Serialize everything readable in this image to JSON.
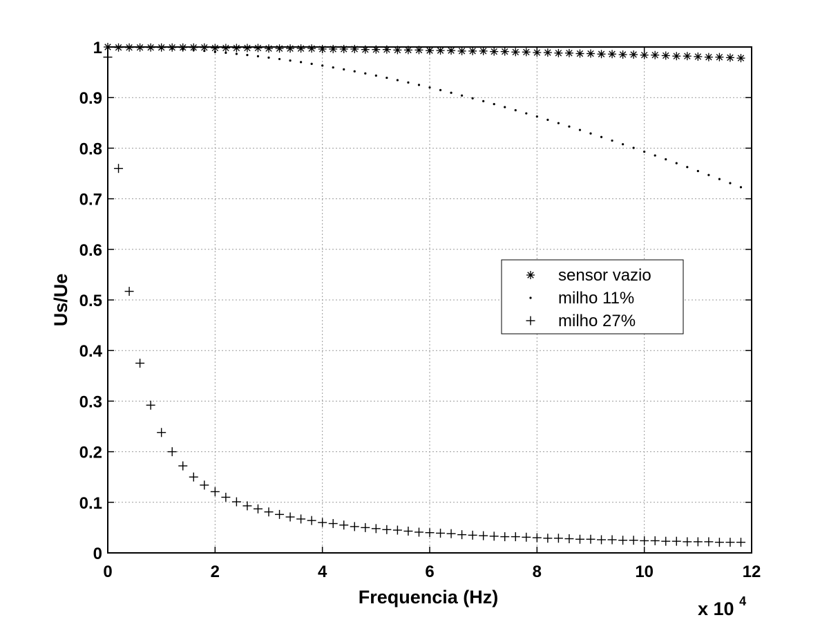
{
  "chart_data": {
    "type": "scatter",
    "title": "",
    "xlabel": "Frequencia (Hz)",
    "ylabel": "Us/Ue",
    "x_multiplier_label": "x 10",
    "x_multiplier_exponent": "4",
    "xlim": [
      0,
      12
    ],
    "ylim": [
      0,
      1
    ],
    "x_ticks": [
      0,
      2,
      4,
      6,
      8,
      10,
      12
    ],
    "y_ticks": [
      0,
      0.1,
      0.2,
      0.3,
      0.4,
      0.5,
      0.6,
      0.7,
      0.8,
      0.9,
      1
    ],
    "x_tick_labels": [
      "0",
      "2",
      "4",
      "6",
      "8",
      "10",
      "12"
    ],
    "y_tick_labels": [
      "0",
      "0.1",
      "0.2",
      "0.3",
      "0.4",
      "0.5",
      "0.6",
      "0.7",
      "0.8",
      "0.9",
      "1"
    ],
    "grid": true,
    "legend_position": "right-center",
    "series": [
      {
        "name": "sensor vazio",
        "marker": "asterisk",
        "x_start": 0,
        "x_step": 0.2,
        "count": 60,
        "y_values": [
          1.0,
          0.999,
          0.999,
          0.999,
          0.999,
          0.999,
          0.999,
          0.999,
          0.999,
          0.999,
          0.998,
          0.998,
          0.998,
          0.998,
          0.998,
          0.997,
          0.997,
          0.997,
          0.997,
          0.997,
          0.996,
          0.996,
          0.996,
          0.996,
          0.995,
          0.995,
          0.995,
          0.994,
          0.994,
          0.994,
          0.993,
          0.993,
          0.993,
          0.992,
          0.992,
          0.992,
          0.991,
          0.991,
          0.99,
          0.99,
          0.989,
          0.989,
          0.988,
          0.988,
          0.987,
          0.987,
          0.986,
          0.986,
          0.985,
          0.985,
          0.984,
          0.984,
          0.983,
          0.982,
          0.982,
          0.981,
          0.98,
          0.98,
          0.979,
          0.978
        ]
      },
      {
        "name": "milho 11%",
        "marker": "dot",
        "x_start": 0,
        "x_step": 0.2,
        "count": 60,
        "y_values": [
          1.0,
          0.9999,
          0.9996,
          0.9991,
          0.9985,
          0.9976,
          0.9965,
          0.9953,
          0.9939,
          0.9923,
          0.9905,
          0.9886,
          0.9864,
          0.9841,
          0.9817,
          0.979,
          0.9762,
          0.9732,
          0.9701,
          0.9667,
          0.9633,
          0.9596,
          0.9558,
          0.9519,
          0.9478,
          0.9435,
          0.9391,
          0.9345,
          0.9298,
          0.925,
          0.92,
          0.9148,
          0.9095,
          0.9041,
          0.8986,
          0.8929,
          0.8871,
          0.8811,
          0.875,
          0.8688,
          0.8625,
          0.856,
          0.8495,
          0.8428,
          0.836,
          0.8291,
          0.8221,
          0.815,
          0.8078,
          0.8005,
          0.7931,
          0.7856,
          0.778,
          0.7703,
          0.7626,
          0.7548,
          0.7469,
          0.7389,
          0.7309,
          0.7228
        ],
        "y_values_note": ""
      },
      {
        "name": "milho 27%",
        "marker": "plus",
        "x_start": 0,
        "x_step": 0.2,
        "count": 60,
        "y_values": [
          0.98,
          0.76,
          0.517,
          0.375,
          0.292,
          0.238,
          0.2,
          0.172,
          0.15,
          0.134,
          0.121,
          0.11,
          0.101,
          0.093,
          0.087,
          0.081,
          0.076,
          0.071,
          0.067,
          0.064,
          0.06,
          0.058,
          0.055,
          0.052,
          0.05,
          0.048,
          0.046,
          0.045,
          0.043,
          0.041,
          0.04,
          0.039,
          0.038,
          0.036,
          0.035,
          0.034,
          0.033,
          0.032,
          0.032,
          0.031,
          0.03,
          0.029,
          0.029,
          0.028,
          0.027,
          0.027,
          0.026,
          0.026,
          0.025,
          0.025,
          0.024,
          0.024,
          0.023,
          0.023,
          0.022,
          0.022,
          0.022,
          0.021,
          0.021,
          0.021
        ]
      }
    ]
  }
}
